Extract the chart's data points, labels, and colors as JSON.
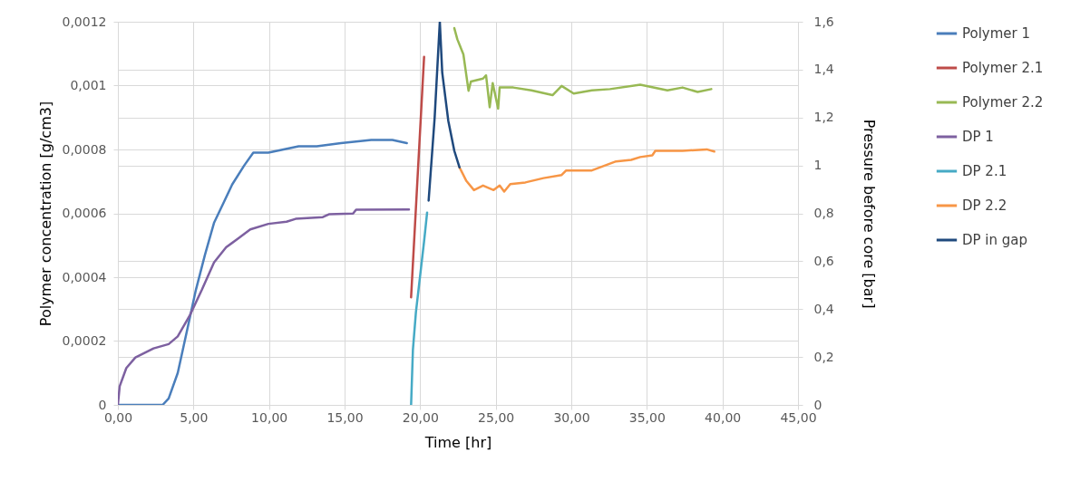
{
  "chart_data": {
    "type": "line",
    "xlabel": "Time [hr]",
    "ylabel": "Polymer concentration [g/cm3]",
    "y2label": "Pressure before core [bar]",
    "xlim": [
      0,
      45
    ],
    "xticks": [
      {
        "value": 0,
        "label": "0,00"
      },
      {
        "value": 5,
        "label": "5,00"
      },
      {
        "value": 10,
        "label": "10,00"
      },
      {
        "value": 15,
        "label": "15,00"
      },
      {
        "value": 20,
        "label": "20,00"
      },
      {
        "value": 25,
        "label": "25,00"
      },
      {
        "value": 30,
        "label": "30,00"
      },
      {
        "value": 35,
        "label": "35,00"
      },
      {
        "value": 40,
        "label": "40,00"
      },
      {
        "value": 45,
        "label": "45,00"
      }
    ],
    "ylim": [
      0,
      0.0012
    ],
    "yticks": [
      0,
      {
        "value": 0.0002,
        "label": "0,0002"
      },
      {
        "value": 0.0004,
        "label": "0,0004"
      },
      {
        "value": 0.0006,
        "label": "0,0006"
      },
      {
        "value": 0.0008,
        "label": "0,0008"
      },
      {
        "value": 0.001,
        "label": "0,001"
      },
      {
        "value": 0.0012,
        "label": "0,0012"
      }
    ],
    "y2lim": [
      0,
      1.6
    ],
    "y2ticks": [
      0,
      {
        "value": 0.2,
        "label": "0,2"
      },
      {
        "value": 0.4,
        "label": "0,4"
      },
      {
        "value": 0.6,
        "label": "0,6"
      },
      {
        "value": 0.8,
        "label": "0,8"
      },
      1,
      {
        "value": 1.2,
        "label": "1,2"
      },
      {
        "value": 1.4,
        "label": "1,4"
      },
      {
        "value": 1.6,
        "label": "1,6"
      }
    ],
    "grid": true,
    "legend": "right",
    "line_style": "solid",
    "series": [
      {
        "name": "Polymer 1",
        "color": "#4a7ebb",
        "x": [
          0,
          0.76,
          1.76,
          2.96,
          3.36,
          3.96,
          4.56,
          5.16,
          5.76,
          6.36,
          6.96,
          7.56,
          8.36,
          8.96,
          9.96,
          10.96,
          11.96,
          13.16,
          14.76,
          16.76,
          18.16,
          19.12
        ],
        "values": [
          0,
          0,
          0,
          0,
          2e-05,
          0.0001,
          0.00023,
          0.00036,
          0.00047,
          0.00057,
          0.00063,
          0.00069,
          0.00075,
          0.00079,
          0.00079,
          0.0008,
          0.00081,
          0.00081,
          0.00082,
          0.00083,
          0.00083,
          0.00082
        ]
      },
      {
        "name": "Polymer 2.1",
        "color": "#be4b48",
        "x": [
          19.4,
          20.26
        ],
        "values": [
          0.000337,
          0.00109
        ]
      },
      {
        "name": "Polymer 2.2",
        "color": "#98b954",
        "x": [
          22.26,
          22.46,
          22.86,
          23.2,
          23.36,
          24.16,
          24.36,
          24.6,
          24.8,
          25.16,
          25.26,
          26.16,
          27.36,
          28.76,
          29.36,
          30.16,
          31.36,
          32.56,
          34.56,
          36.36,
          37.36,
          38.36,
          39.26
        ],
        "values": [
          0.00118,
          0.001145,
          0.001098,
          0.000984,
          0.001013,
          0.001022,
          0.001032,
          0.000932,
          0.001008,
          0.000928,
          0.000994,
          0.000994,
          0.000985,
          0.00097,
          0.000999,
          0.000975,
          0.000985,
          0.000989,
          0.001003,
          0.000985,
          0.000994,
          0.00098,
          0.000989
        ]
      },
      {
        "name": "DP 1",
        "color": "#7d60a0",
        "axis": "y2",
        "x": [
          0,
          0.12,
          0.56,
          1.16,
          2.36,
          3.36,
          3.96,
          4.76,
          5.56,
          6.36,
          7.16,
          7.96,
          8.76,
          9.96,
          11.16,
          11.76,
          13.56,
          13.96,
          15.56,
          15.76,
          19.26
        ],
        "values": [
          0,
          0.078,
          0.154,
          0.198,
          0.236,
          0.254,
          0.286,
          0.374,
          0.481,
          0.595,
          0.658,
          0.695,
          0.733,
          0.756,
          0.765,
          0.777,
          0.784,
          0.796,
          0.799,
          0.815,
          0.816
        ]
      },
      {
        "name": "DP 2.1",
        "color": "#46aac5",
        "axis": "y2",
        "x": [
          19.4,
          19.52,
          19.72,
          19.96,
          20.26,
          20.46
        ],
        "values": [
          0,
          0.229,
          0.387,
          0.519,
          0.683,
          0.803
        ]
      },
      {
        "name": "DP 2.2",
        "color": "#f79646",
        "axis": "y2",
        "x": [
          22.6,
          23.06,
          23.56,
          24.16,
          24.86,
          25.26,
          25.56,
          25.96,
          26.96,
          28.16,
          29.36,
          29.66,
          31.36,
          32.16,
          32.96,
          33.96,
          34.56,
          35.36,
          35.56,
          37.36,
          38.96,
          39.46
        ],
        "values": [
          0.992,
          0.935,
          0.897,
          0.916,
          0.897,
          0.916,
          0.891,
          0.922,
          0.929,
          0.947,
          0.96,
          0.979,
          0.979,
          0.998,
          1.017,
          1.023,
          1.035,
          1.042,
          1.061,
          1.061,
          1.067,
          1.058
        ]
      },
      {
        "name": "DP in gap",
        "color": "#1f497d",
        "axis": "y2",
        "x": [
          20.56,
          20.96,
          21.3,
          21.46,
          21.86,
          22.26,
          22.6
        ],
        "values": [
          0.853,
          1.2,
          1.6,
          1.388,
          1.187,
          1.061,
          0.992
        ]
      }
    ]
  }
}
